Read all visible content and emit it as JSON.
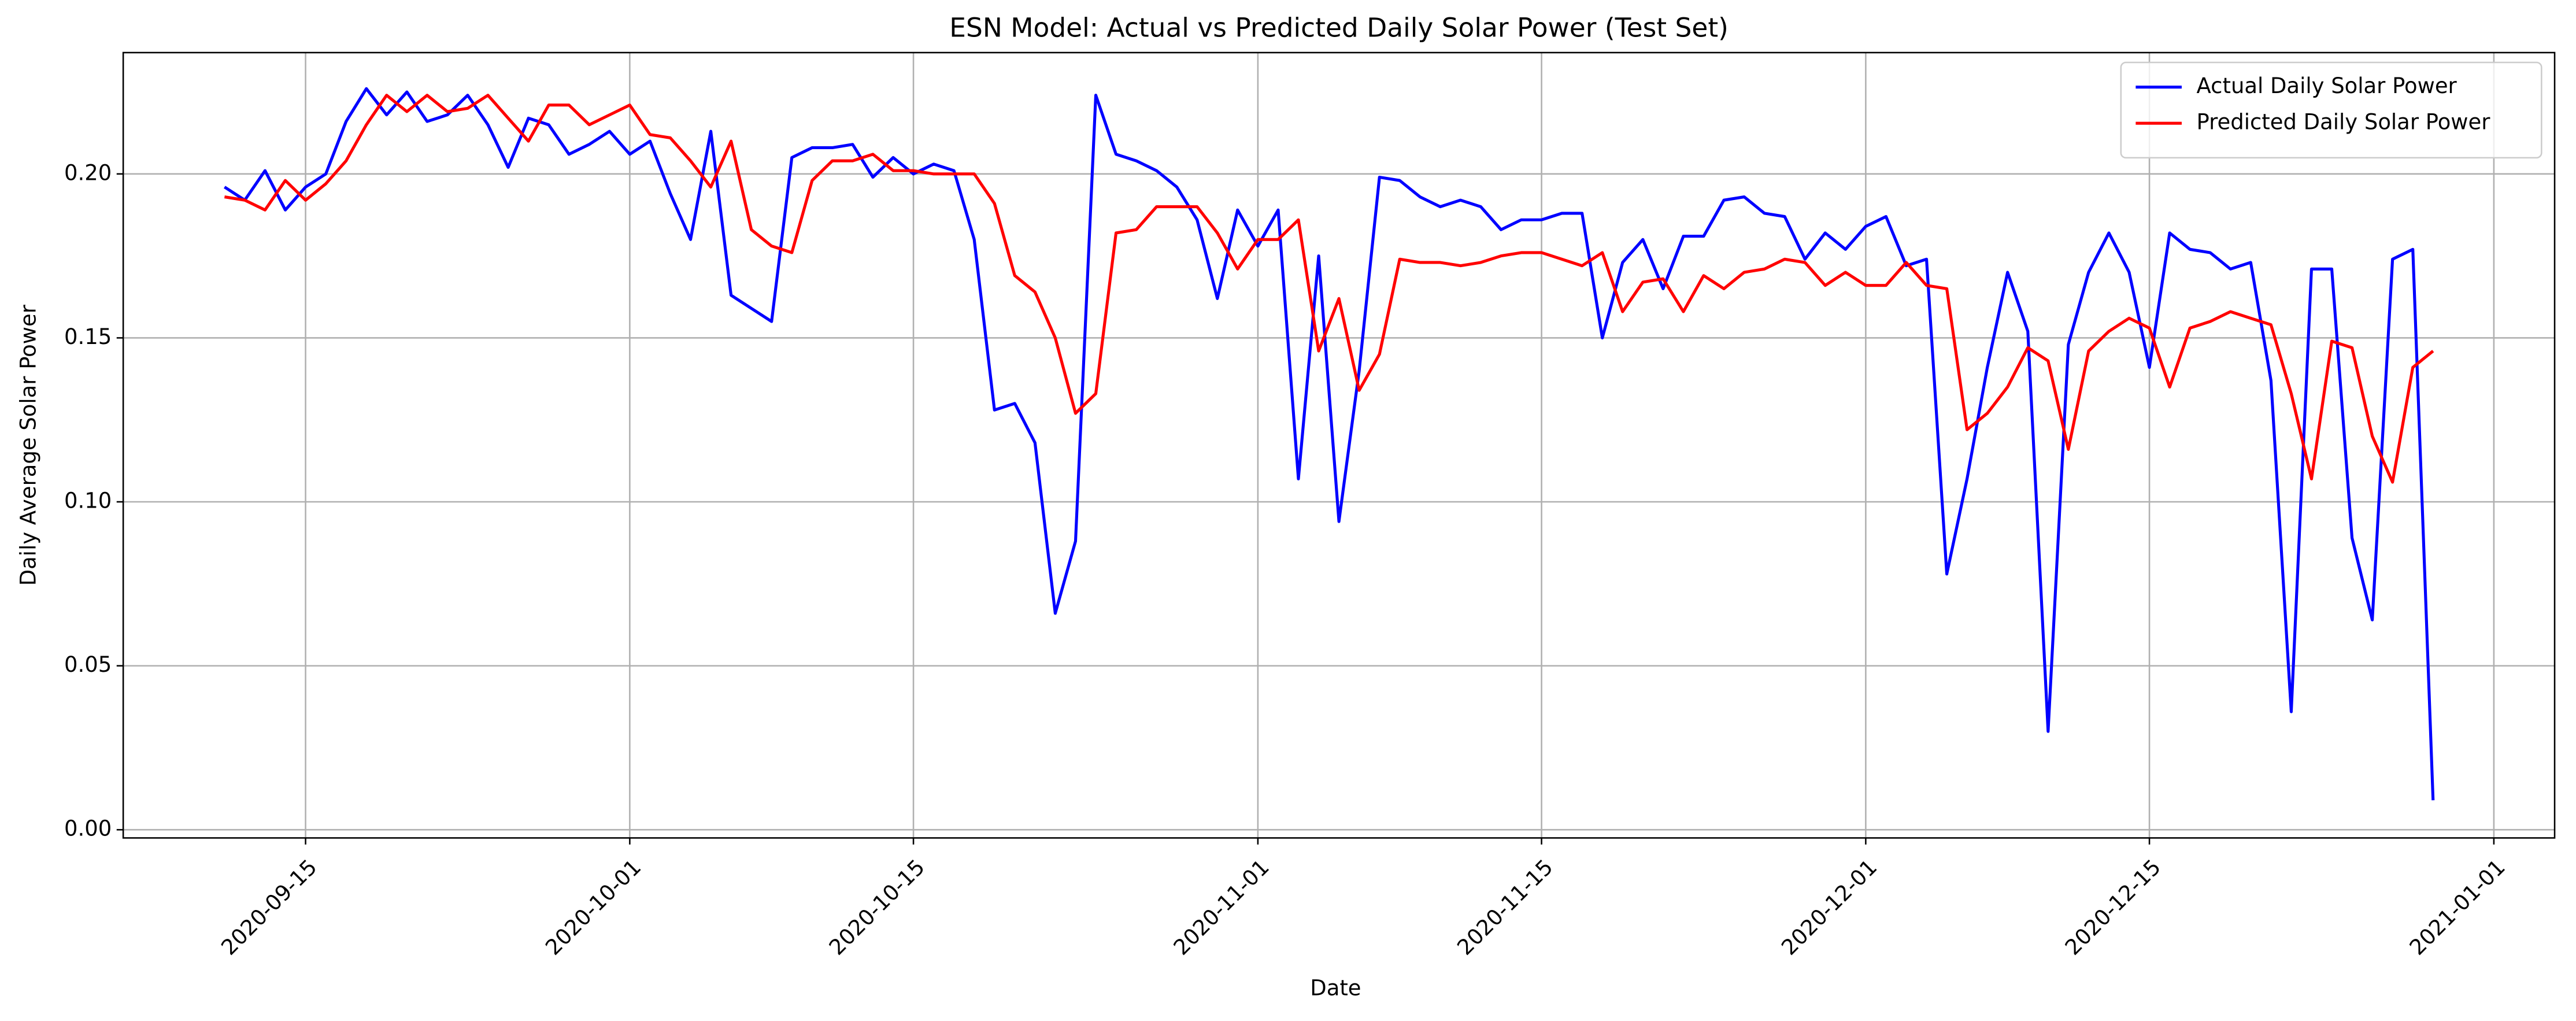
{
  "chart_data": {
    "type": "line",
    "title": "ESN Model: Actual vs Predicted Daily Solar Power (Test Set)",
    "xlabel": "Date",
    "ylabel": "Daily Average Solar Power",
    "x": [
      "2020-09-11",
      "2020-09-12",
      "2020-09-13",
      "2020-09-14",
      "2020-09-15",
      "2020-09-16",
      "2020-09-17",
      "2020-09-18",
      "2020-09-19",
      "2020-09-20",
      "2020-09-21",
      "2020-09-22",
      "2020-09-23",
      "2020-09-24",
      "2020-09-25",
      "2020-09-26",
      "2020-09-27",
      "2020-09-28",
      "2020-09-29",
      "2020-09-30",
      "2020-10-01",
      "2020-10-02",
      "2020-10-03",
      "2020-10-04",
      "2020-10-05",
      "2020-10-06",
      "2020-10-07",
      "2020-10-08",
      "2020-10-09",
      "2020-10-10",
      "2020-10-11",
      "2020-10-12",
      "2020-10-13",
      "2020-10-14",
      "2020-10-15",
      "2020-10-16",
      "2020-10-17",
      "2020-10-18",
      "2020-10-19",
      "2020-10-20",
      "2020-10-21",
      "2020-10-22",
      "2020-10-23",
      "2020-10-24",
      "2020-10-25",
      "2020-10-26",
      "2020-10-27",
      "2020-10-28",
      "2020-10-29",
      "2020-10-30",
      "2020-10-31",
      "2020-11-01",
      "2020-11-02",
      "2020-11-03",
      "2020-11-04",
      "2020-11-05",
      "2020-11-06",
      "2020-11-07",
      "2020-11-08",
      "2020-11-09",
      "2020-11-10",
      "2020-11-11",
      "2020-11-12",
      "2020-11-13",
      "2020-11-14",
      "2020-11-15",
      "2020-11-16",
      "2020-11-17",
      "2020-11-18",
      "2020-11-19",
      "2020-11-20",
      "2020-11-21",
      "2020-11-22",
      "2020-11-23",
      "2020-11-24",
      "2020-11-25",
      "2020-11-26",
      "2020-11-27",
      "2020-11-28",
      "2020-11-29",
      "2020-11-30",
      "2020-12-01",
      "2020-12-02",
      "2020-12-03",
      "2020-12-04",
      "2020-12-05",
      "2020-12-06",
      "2020-12-07",
      "2020-12-08",
      "2020-12-09",
      "2020-12-10",
      "2020-12-11",
      "2020-12-12",
      "2020-12-13",
      "2020-12-14",
      "2020-12-15",
      "2020-12-16",
      "2020-12-17",
      "2020-12-18",
      "2020-12-19",
      "2020-12-20",
      "2020-12-21",
      "2020-12-22",
      "2020-12-23",
      "2020-12-24",
      "2020-12-25",
      "2020-12-26",
      "2020-12-27",
      "2020-12-28",
      "2020-12-29"
    ],
    "series": [
      {
        "name": "Actual Daily Solar Power",
        "color": "#0000ff",
        "values": [
          0.196,
          0.192,
          0.201,
          0.189,
          0.196,
          0.2,
          0.216,
          0.226,
          0.218,
          0.225,
          0.216,
          0.218,
          0.224,
          0.215,
          0.202,
          0.217,
          0.215,
          0.206,
          0.209,
          0.213,
          0.206,
          0.21,
          0.194,
          0.18,
          0.213,
          0.163,
          0.159,
          0.155,
          0.205,
          0.208,
          0.208,
          0.209,
          0.199,
          0.205,
          0.2,
          0.203,
          0.201,
          0.18,
          0.128,
          0.13,
          0.118,
          0.066,
          0.088,
          0.224,
          0.206,
          0.204,
          0.201,
          0.196,
          0.186,
          0.162,
          0.189,
          0.178,
          0.189,
          0.107,
          0.175,
          0.094,
          0.14,
          0.199,
          0.198,
          0.193,
          0.19,
          0.192,
          0.19,
          0.183,
          0.186,
          0.186,
          0.188,
          0.188,
          0.15,
          0.173,
          0.18,
          0.165,
          0.181,
          0.181,
          0.192,
          0.193,
          0.188,
          0.187,
          0.174,
          0.182,
          0.177,
          0.184,
          0.187,
          0.172,
          0.174,
          0.078,
          0.107,
          0.141,
          0.17,
          0.152,
          0.03,
          0.148,
          0.17,
          0.182,
          0.17,
          0.141,
          0.182,
          0.177,
          0.176,
          0.171,
          0.173,
          0.137,
          0.036,
          0.171,
          0.171,
          0.089,
          0.064,
          0.174,
          0.177,
          0.009
        ]
      },
      {
        "name": "Predicted Daily Solar Power",
        "color": "#ff0000",
        "values": [
          0.193,
          0.192,
          0.189,
          0.198,
          0.192,
          0.197,
          0.204,
          0.215,
          0.224,
          0.219,
          0.224,
          0.219,
          0.22,
          0.224,
          0.217,
          0.21,
          0.221,
          0.221,
          0.215,
          0.218,
          0.221,
          0.212,
          0.211,
          0.204,
          0.196,
          0.21,
          0.183,
          0.178,
          0.176,
          0.198,
          0.204,
          0.204,
          0.206,
          0.201,
          0.201,
          0.2,
          0.2,
          0.2,
          0.191,
          0.169,
          0.164,
          0.15,
          0.127,
          0.133,
          0.182,
          0.183,
          0.19,
          0.19,
          0.19,
          0.182,
          0.171,
          0.18,
          0.18,
          0.186,
          0.146,
          0.162,
          0.134,
          0.145,
          0.174,
          0.173,
          0.173,
          0.172,
          0.173,
          0.175,
          0.176,
          0.176,
          0.174,
          0.172,
          0.176,
          0.158,
          0.167,
          0.168,
          0.158,
          0.169,
          0.165,
          0.17,
          0.171,
          0.174,
          0.173,
          0.166,
          0.17,
          0.166,
          0.166,
          0.173,
          0.166,
          0.165,
          0.122,
          0.127,
          0.135,
          0.147,
          0.143,
          0.116,
          0.146,
          0.152,
          0.156,
          0.153,
          0.135,
          0.153,
          0.155,
          0.158,
          0.156,
          0.154,
          0.133,
          0.107,
          0.149,
          0.147,
          0.12,
          0.106,
          0.141,
          0.146
        ]
      }
    ],
    "xlim": [
      "2020-09-06",
      "2021-01-04"
    ],
    "xticks": [
      "2020-09-15",
      "2020-10-01",
      "2020-10-15",
      "2020-11-01",
      "2020-11-15",
      "2020-12-01",
      "2020-12-15",
      "2021-01-01"
    ],
    "ylim": [
      -0.0025,
      0.237
    ],
    "yticks": [
      {
        "value": 0,
        "label": "0.00"
      },
      {
        "value": 0.05,
        "label": "0.05"
      },
      {
        "value": 0.1,
        "label": "0.10"
      },
      {
        "value": 0.15,
        "label": "0.15"
      },
      {
        "value": 0.2,
        "label": "0.20"
      }
    ],
    "grid": true,
    "legend": "upper right"
  }
}
